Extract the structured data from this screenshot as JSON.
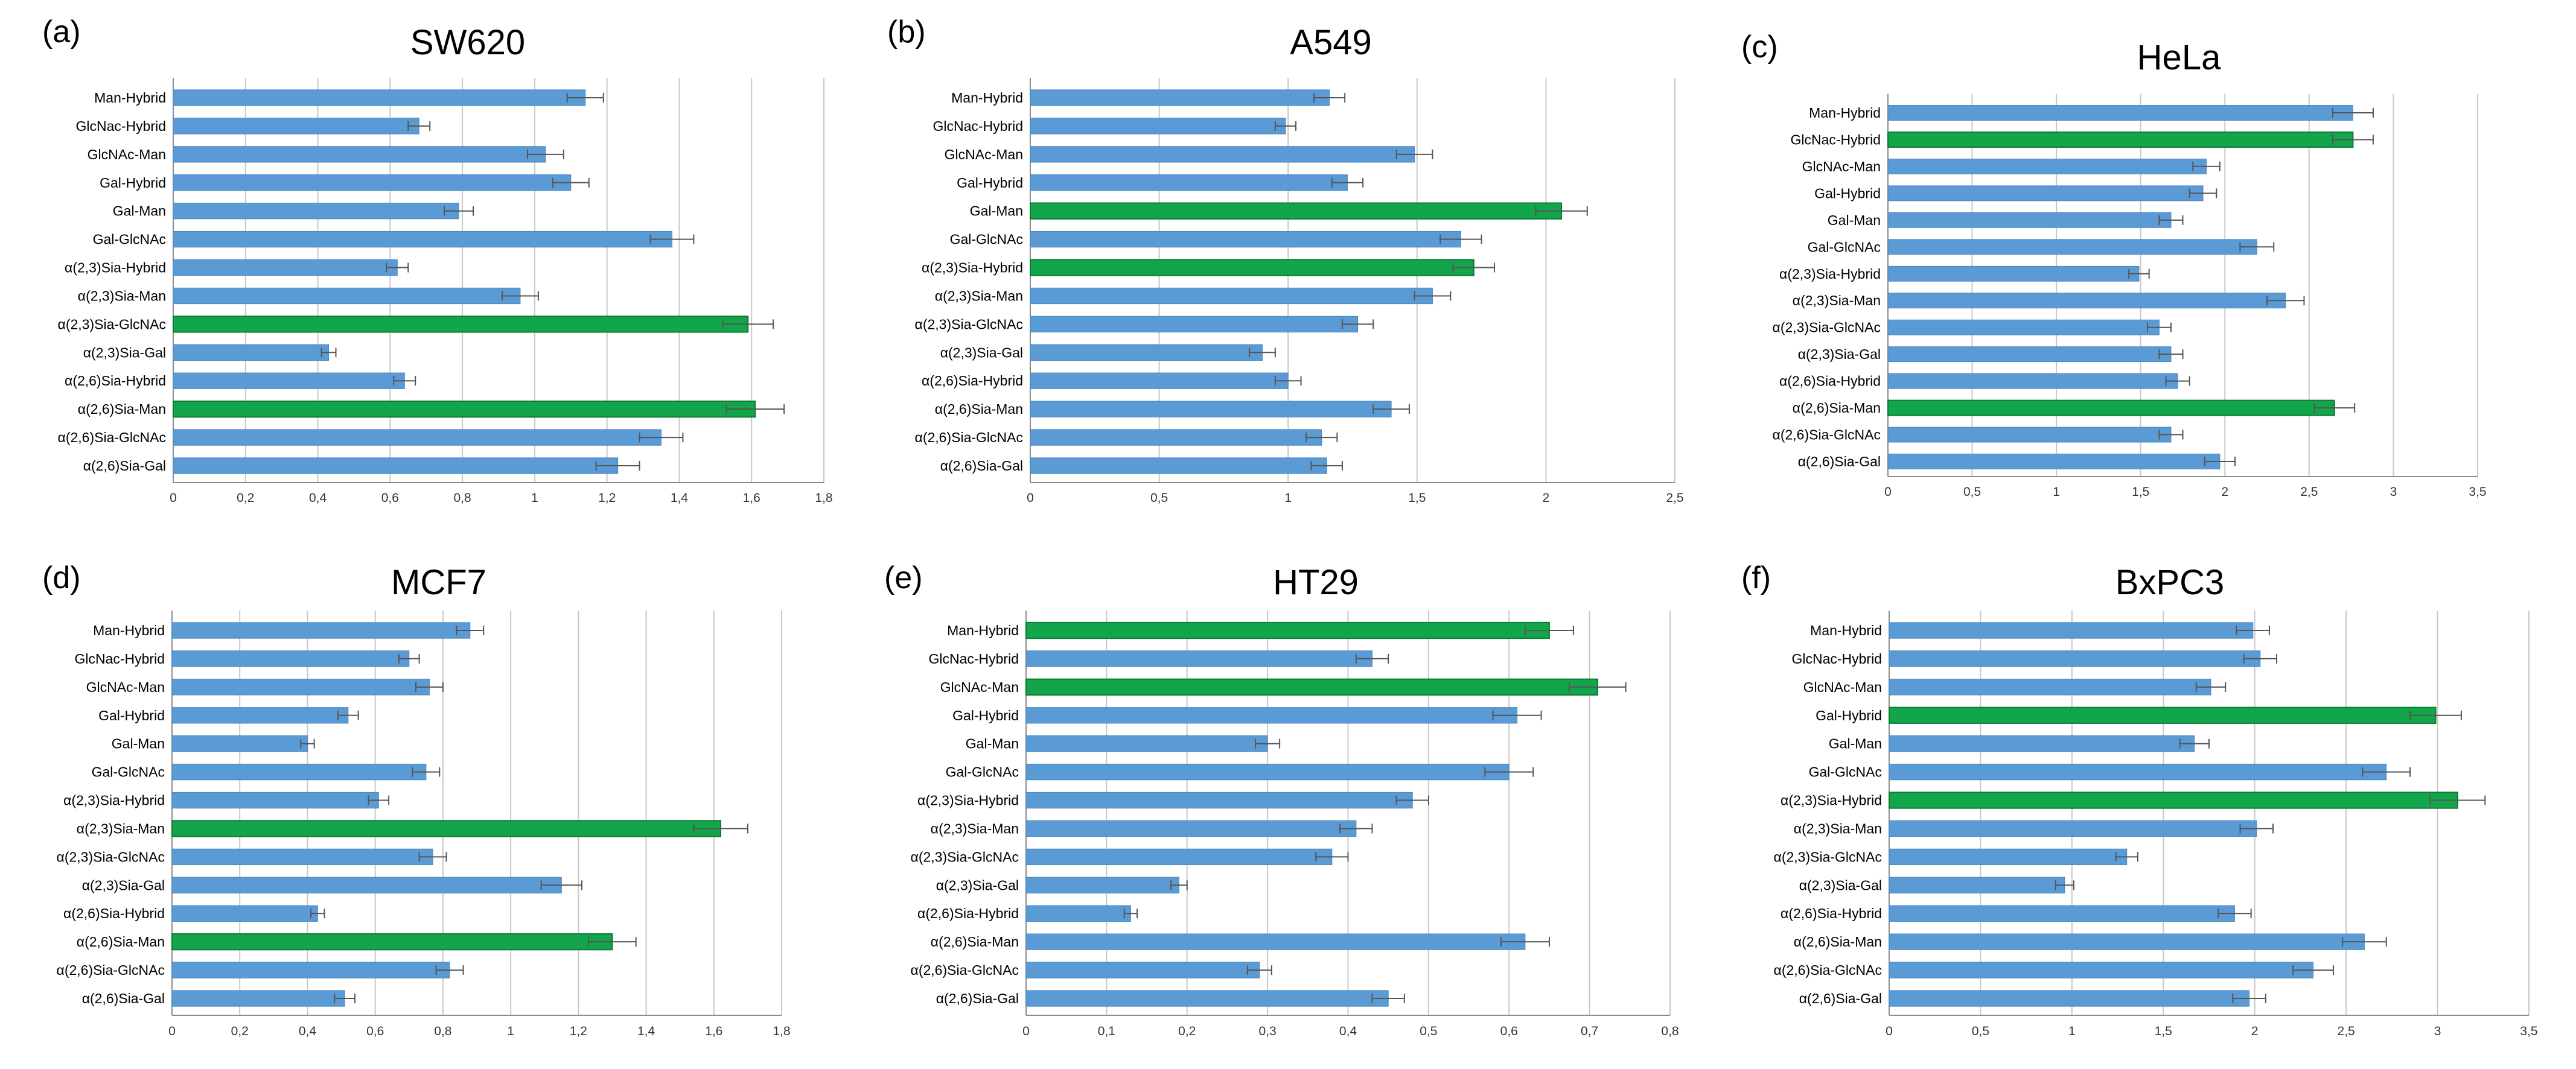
{
  "colors": {
    "normal": "#5b9bd5",
    "highlight": "#12a54a",
    "grid": "#c8c8c8",
    "error": "#555555"
  },
  "chart_data": [
    {
      "type": "bar",
      "orientation": "horizontal",
      "panel": "(a)",
      "title": "SW620",
      "categories": [
        "Man-Hybrid",
        "GlcNac-Hybrid",
        "GlcNAc-Man",
        "Gal-Hybrid",
        "Gal-Man",
        "Gal-GlcNAc",
        "α(2,3)Sia-Hybrid",
        "α(2,3)Sia-Man",
        "α(2,3)Sia-GlcNAc",
        "α(2,3)Sia-Gal",
        "α(2,6)Sia-Hybrid",
        "α(2,6)Sia-Man",
        "α(2,6)Sia-GlcNAc",
        "α(2,6)Sia-Gal"
      ],
      "values": [
        1.14,
        0.68,
        1.03,
        1.1,
        0.79,
        1.38,
        0.62,
        0.96,
        1.59,
        0.43,
        0.64,
        1.61,
        1.35,
        1.23
      ],
      "errors": [
        0.05,
        0.03,
        0.05,
        0.05,
        0.04,
        0.06,
        0.03,
        0.05,
        0.07,
        0.02,
        0.03,
        0.08,
        0.06,
        0.06
      ],
      "highlight": [
        false,
        false,
        false,
        false,
        false,
        false,
        false,
        false,
        true,
        false,
        false,
        true,
        false,
        false
      ],
      "xlim": [
        0,
        1.8
      ],
      "ticks": [
        "0",
        "0,2",
        "0,4",
        "0,6",
        "0,8",
        "1",
        "1,2",
        "1,4",
        "1,6",
        "1,8"
      ]
    },
    {
      "type": "bar",
      "orientation": "horizontal",
      "panel": "(b)",
      "title": "A549",
      "categories": [
        "Man-Hybrid",
        "GlcNac-Hybrid",
        "GlcNAc-Man",
        "Gal-Hybrid",
        "Gal-Man",
        "Gal-GlcNAc",
        "α(2,3)Sia-Hybrid",
        "α(2,3)Sia-Man",
        "α(2,3)Sia-GlcNAc",
        "α(2,3)Sia-Gal",
        "α(2,6)Sia-Hybrid",
        "α(2,6)Sia-Man",
        "α(2,6)Sia-GlcNAc",
        "α(2,6)Sia-Gal"
      ],
      "values": [
        1.16,
        0.99,
        1.49,
        1.23,
        2.06,
        1.67,
        1.72,
        1.56,
        1.27,
        0.9,
        1.0,
        1.4,
        1.13,
        1.15
      ],
      "errors": [
        0.06,
        0.04,
        0.07,
        0.06,
        0.1,
        0.08,
        0.08,
        0.07,
        0.06,
        0.05,
        0.05,
        0.07,
        0.06,
        0.06
      ],
      "highlight": [
        false,
        false,
        false,
        false,
        true,
        false,
        true,
        false,
        false,
        false,
        false,
        false,
        false,
        false
      ],
      "xlim": [
        0,
        2.5
      ],
      "ticks": [
        "0",
        "0,5",
        "1",
        "1,5",
        "2",
        "2,5"
      ]
    },
    {
      "type": "bar",
      "orientation": "horizontal",
      "panel": "(c)",
      "title": "HeLa",
      "categories": [
        "Man-Hybrid",
        "GlcNac-Hybrid",
        "GlcNAc-Man",
        "Gal-Hybrid",
        "Gal-Man",
        "Gal-GlcNAc",
        "α(2,3)Sia-Hybrid",
        "α(2,3)Sia-Man",
        "α(2,3)Sia-GlcNAc",
        "α(2,3)Sia-Gal",
        "α(2,6)Sia-Hybrid",
        "α(2,6)Sia-Man",
        "α(2,6)Sia-GlcNAc",
        "α(2,6)Sia-Gal"
      ],
      "values": [
        2.76,
        2.76,
        1.89,
        1.87,
        1.68,
        2.19,
        1.49,
        2.36,
        1.61,
        1.68,
        1.72,
        2.65,
        1.68,
        1.97
      ],
      "errors": [
        0.12,
        0.12,
        0.08,
        0.08,
        0.07,
        0.1,
        0.06,
        0.11,
        0.07,
        0.07,
        0.07,
        0.12,
        0.07,
        0.09
      ],
      "highlight": [
        false,
        true,
        false,
        false,
        false,
        false,
        false,
        false,
        false,
        false,
        false,
        true,
        false,
        false
      ],
      "xlim": [
        0,
        3.5
      ],
      "ticks": [
        "0",
        "0,5",
        "1",
        "1,5",
        "2",
        "2,5",
        "3",
        "3,5"
      ]
    },
    {
      "type": "bar",
      "orientation": "horizontal",
      "panel": "(d)",
      "title": "MCF7",
      "categories": [
        "Man-Hybrid",
        "GlcNac-Hybrid",
        "GlcNAc-Man",
        "Gal-Hybrid",
        "Gal-Man",
        "Gal-GlcNAc",
        "α(2,3)Sia-Hybrid",
        "α(2,3)Sia-Man",
        "α(2,3)Sia-GlcNAc",
        "α(2,3)Sia-Gal",
        "α(2,6)Sia-Hybrid",
        "α(2,6)Sia-Man",
        "α(2,6)Sia-GlcNAc",
        "α(2,6)Sia-Gal"
      ],
      "values": [
        0.88,
        0.7,
        0.76,
        0.52,
        0.4,
        0.75,
        0.61,
        1.62,
        0.77,
        1.15,
        0.43,
        1.3,
        0.82,
        0.51
      ],
      "errors": [
        0.04,
        0.03,
        0.04,
        0.03,
        0.02,
        0.04,
        0.03,
        0.08,
        0.04,
        0.06,
        0.02,
        0.07,
        0.04,
        0.03
      ],
      "highlight": [
        false,
        false,
        false,
        false,
        false,
        false,
        false,
        true,
        false,
        false,
        false,
        true,
        false,
        false
      ],
      "xlim": [
        0,
        1.8
      ],
      "ticks": [
        "0",
        "0,2",
        "0,4",
        "0,6",
        "0,8",
        "1",
        "1,2",
        "1,4",
        "1,6",
        "1,8"
      ]
    },
    {
      "type": "bar",
      "orientation": "horizontal",
      "panel": "(e)",
      "title": "HT29",
      "categories": [
        "Man-Hybrid",
        "GlcNac-Hybrid",
        "GlcNAc-Man",
        "Gal-Hybrid",
        "Gal-Man",
        "Gal-GlcNAc",
        "α(2,3)Sia-Hybrid",
        "α(2,3)Sia-Man",
        "α(2,3)Sia-GlcNAc",
        "α(2,3)Sia-Gal",
        "α(2,6)Sia-Hybrid",
        "α(2,6)Sia-Man",
        "α(2,6)Sia-GlcNAc",
        "α(2,6)Sia-Gal"
      ],
      "values": [
        0.65,
        0.43,
        0.71,
        0.61,
        0.3,
        0.6,
        0.48,
        0.41,
        0.38,
        0.19,
        0.13,
        0.62,
        0.29,
        0.45
      ],
      "errors": [
        0.03,
        0.02,
        0.035,
        0.03,
        0.015,
        0.03,
        0.02,
        0.02,
        0.02,
        0.01,
        0.008,
        0.03,
        0.015,
        0.02
      ],
      "highlight": [
        true,
        false,
        true,
        false,
        false,
        false,
        false,
        false,
        false,
        false,
        false,
        false,
        false,
        false
      ],
      "xlim": [
        0,
        0.8
      ],
      "ticks": [
        "0",
        "0,1",
        "0,2",
        "0,3",
        "0,4",
        "0,5",
        "0,6",
        "0,7",
        "0,8"
      ]
    },
    {
      "type": "bar",
      "orientation": "horizontal",
      "panel": "(f)",
      "title": "BxPC3",
      "categories": [
        "Man-Hybrid",
        "GlcNac-Hybrid",
        "GlcNAc-Man",
        "Gal-Hybrid",
        "Gal-Man",
        "Gal-GlcNAc",
        "α(2,3)Sia-Hybrid",
        "α(2,3)Sia-Man",
        "α(2,3)Sia-GlcNAc",
        "α(2,3)Sia-Gal",
        "α(2,6)Sia-Hybrid",
        "α(2,6)Sia-Man",
        "α(2,6)Sia-GlcNAc",
        "α(2,6)Sia-Gal"
      ],
      "values": [
        1.99,
        2.03,
        1.76,
        2.99,
        1.67,
        2.72,
        3.11,
        2.01,
        1.3,
        0.96,
        1.89,
        2.6,
        2.32,
        1.97
      ],
      "errors": [
        0.09,
        0.09,
        0.08,
        0.14,
        0.08,
        0.13,
        0.15,
        0.09,
        0.06,
        0.05,
        0.09,
        0.12,
        0.11,
        0.09
      ],
      "highlight": [
        false,
        false,
        false,
        true,
        false,
        false,
        true,
        false,
        false,
        false,
        false,
        false,
        false,
        false
      ],
      "xlim": [
        0,
        3.5
      ],
      "ticks": [
        "0",
        "0,5",
        "1",
        "1,5",
        "2",
        "2,5",
        "3",
        "3,5"
      ]
    }
  ]
}
